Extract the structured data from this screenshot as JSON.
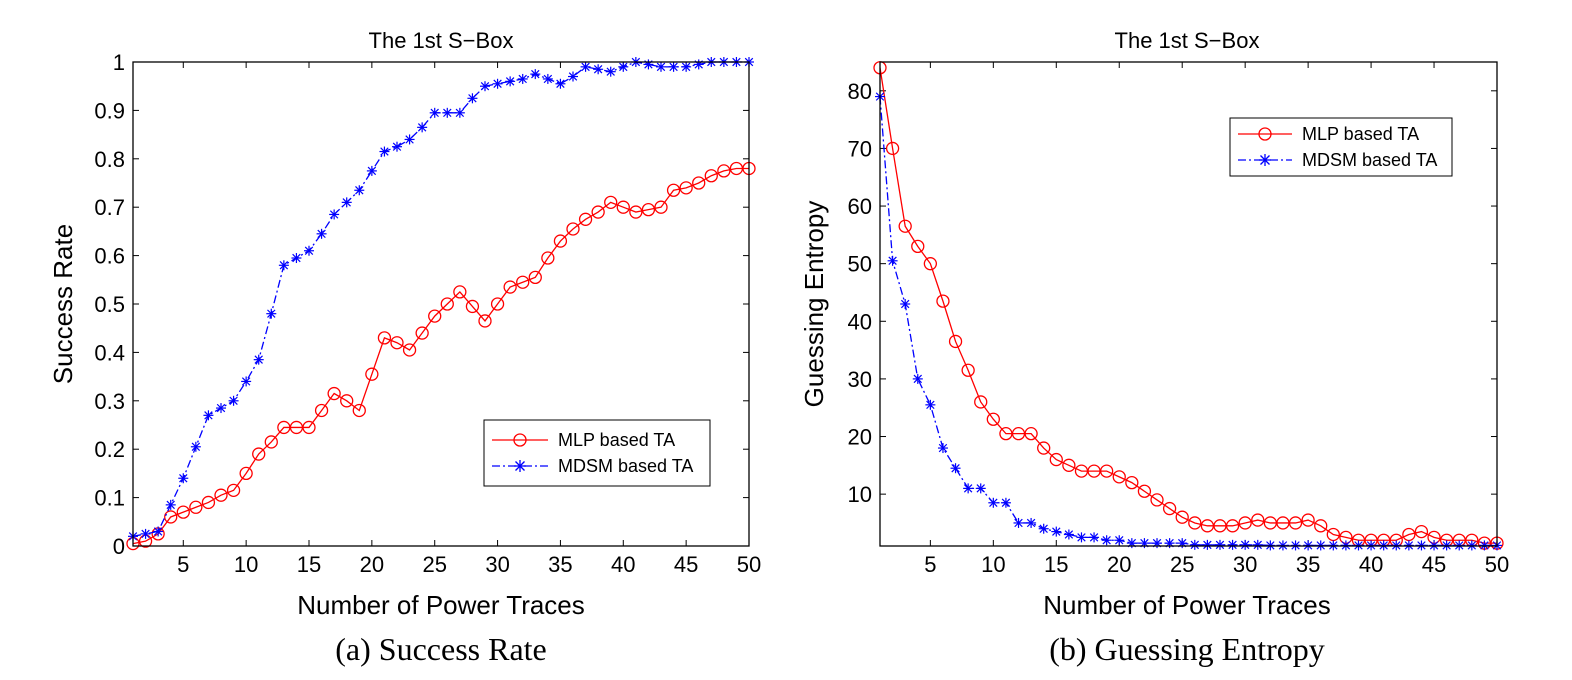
{
  "chart_data": [
    {
      "type": "line",
      "title": "The 1st S−Box",
      "xlabel": "Number of Power Traces",
      "ylabel": "Success Rate",
      "caption": "(a)  Success Rate",
      "xlim": [
        1,
        50
      ],
      "ylim": [
        0,
        1
      ],
      "xticks": [
        5,
        10,
        15,
        20,
        25,
        30,
        35,
        40,
        45,
        50
      ],
      "yticks": [
        0,
        0.1,
        0.2,
        0.3,
        0.4,
        0.5,
        0.6,
        0.7,
        0.8,
        0.9,
        1
      ],
      "ytick_labels": [
        "0",
        "0.1",
        "0.2",
        "0.3",
        "0.4",
        "0.5",
        "0.6",
        "0.7",
        "0.8",
        "0.9",
        "1"
      ],
      "legend_position": "lower-right",
      "series": [
        {
          "name": "MLP based TA",
          "color": "#ff0000",
          "marker": "circle",
          "style": "solid",
          "x": [
            1,
            2,
            3,
            4,
            5,
            6,
            7,
            8,
            9,
            10,
            11,
            12,
            13,
            14,
            15,
            16,
            17,
            18,
            19,
            20,
            21,
            22,
            23,
            24,
            25,
            26,
            27,
            28,
            29,
            30,
            31,
            32,
            33,
            34,
            35,
            36,
            37,
            38,
            39,
            40,
            41,
            42,
            43,
            44,
            45,
            46,
            47,
            48,
            49,
            50
          ],
          "values": [
            0.005,
            0.01,
            0.025,
            0.06,
            0.07,
            0.08,
            0.09,
            0.105,
            0.115,
            0.15,
            0.19,
            0.215,
            0.245,
            0.245,
            0.245,
            0.28,
            0.315,
            0.3,
            0.28,
            0.355,
            0.43,
            0.42,
            0.405,
            0.44,
            0.475,
            0.5,
            0.525,
            0.495,
            0.465,
            0.5,
            0.535,
            0.545,
            0.555,
            0.595,
            0.63,
            0.655,
            0.675,
            0.69,
            0.71,
            0.7,
            0.69,
            0.695,
            0.7,
            0.735,
            0.74,
            0.75,
            0.765,
            0.775,
            0.78,
            0.78
          ]
        },
        {
          "name": "MDSM based TA",
          "color": "#0000ff",
          "marker": "star",
          "style": "dashdot",
          "x": [
            1,
            2,
            3,
            4,
            5,
            6,
            7,
            8,
            9,
            10,
            11,
            12,
            13,
            14,
            15,
            16,
            17,
            18,
            19,
            20,
            21,
            22,
            23,
            24,
            25,
            26,
            27,
            28,
            29,
            30,
            31,
            32,
            33,
            34,
            35,
            36,
            37,
            38,
            39,
            40,
            41,
            42,
            43,
            44,
            45,
            46,
            47,
            48,
            49,
            50
          ],
          "values": [
            0.02,
            0.025,
            0.03,
            0.085,
            0.14,
            0.205,
            0.27,
            0.285,
            0.3,
            0.34,
            0.385,
            0.48,
            0.58,
            0.595,
            0.61,
            0.645,
            0.685,
            0.71,
            0.735,
            0.775,
            0.815,
            0.825,
            0.84,
            0.865,
            0.895,
            0.895,
            0.895,
            0.925,
            0.95,
            0.955,
            0.96,
            0.965,
            0.975,
            0.965,
            0.955,
            0.97,
            0.99,
            0.985,
            0.98,
            0.99,
            1.0,
            0.995,
            0.99,
            0.99,
            0.99,
            0.995,
            1.0,
            1.0,
            1.0,
            1.0
          ]
        }
      ]
    },
    {
      "type": "line",
      "title": "The 1st S−Box",
      "xlabel": "Number of Power Traces",
      "ylabel": "Guessing Entropy",
      "caption": "(b)  Guessing Entropy",
      "xlim": [
        1,
        50
      ],
      "ylim": [
        1,
        85
      ],
      "xticks": [
        5,
        10,
        15,
        20,
        25,
        30,
        35,
        40,
        45,
        50
      ],
      "yticks": [
        10,
        20,
        30,
        40,
        50,
        60,
        70,
        80
      ],
      "ytick_labels": [
        "10",
        "20",
        "30",
        "40",
        "50",
        "60",
        "70",
        "80"
      ],
      "legend_position": "upper-right",
      "series": [
        {
          "name": "MLP based TA",
          "color": "#ff0000",
          "marker": "circle",
          "style": "solid",
          "x": [
            1,
            2,
            3,
            4,
            5,
            6,
            7,
            8,
            9,
            10,
            11,
            12,
            13,
            14,
            15,
            16,
            17,
            18,
            19,
            20,
            21,
            22,
            23,
            24,
            25,
            26,
            27,
            28,
            29,
            30,
            31,
            32,
            33,
            34,
            35,
            36,
            37,
            38,
            39,
            40,
            41,
            42,
            43,
            44,
            45,
            46,
            47,
            48,
            49,
            50
          ],
          "values": [
            84,
            70,
            56.5,
            53,
            50,
            43.5,
            36.5,
            31.5,
            26,
            23,
            20.5,
            20.5,
            20.5,
            18,
            16,
            15,
            14,
            14,
            14,
            13,
            12,
            10.5,
            9,
            7.5,
            6,
            5,
            4.5,
            4.5,
            4.5,
            5,
            5.5,
            5,
            5,
            5,
            5.5,
            4.5,
            3,
            2.5,
            2,
            2,
            2,
            2,
            3,
            3.5,
            2.5,
            2,
            2,
            2,
            1.5,
            1.5
          ]
        },
        {
          "name": "MDSM based TA",
          "color": "#0000ff",
          "marker": "star",
          "style": "dashdot",
          "x": [
            1,
            2,
            3,
            4,
            5,
            6,
            7,
            8,
            9,
            10,
            11,
            12,
            13,
            14,
            15,
            16,
            17,
            18,
            19,
            20,
            21,
            22,
            23,
            24,
            25,
            26,
            27,
            28,
            29,
            30,
            31,
            32,
            33,
            34,
            35,
            36,
            37,
            38,
            39,
            40,
            41,
            42,
            43,
            44,
            45,
            46,
            47,
            48,
            49,
            50
          ],
          "values": [
            79,
            50.5,
            43,
            30,
            25.5,
            18,
            14.5,
            11,
            11,
            8.5,
            8.5,
            5,
            5,
            4,
            3.5,
            3,
            2.5,
            2.5,
            2,
            2,
            1.5,
            1.5,
            1.5,
            1.5,
            1.5,
            1.2,
            1.2,
            1.2,
            1.2,
            1.2,
            1.2,
            1.1,
            1.1,
            1.1,
            1.1,
            1.1,
            1.1,
            1.1,
            1.1,
            1.1,
            1.1,
            1.1,
            1.1,
            1.1,
            1.1,
            1.1,
            1.1,
            1.1,
            1.1,
            1.1
          ]
        }
      ]
    }
  ]
}
